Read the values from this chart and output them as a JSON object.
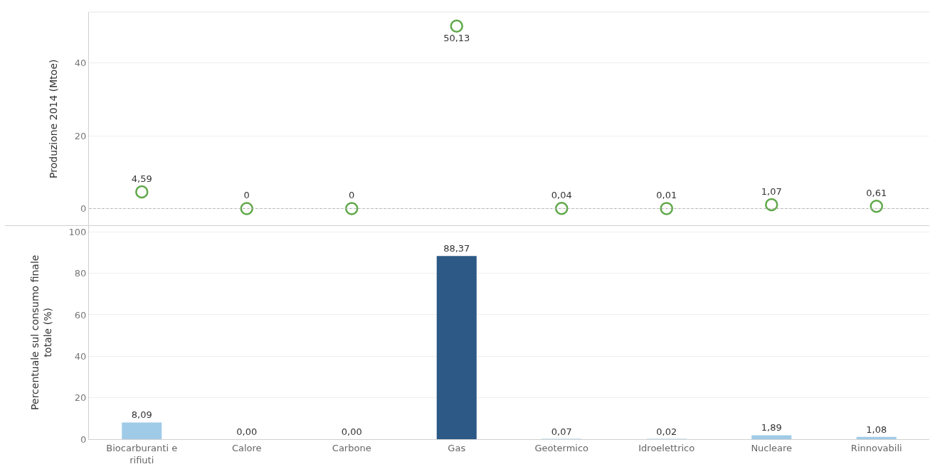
{
  "chart_data": [
    {
      "type": "scatter",
      "ylabel": "Produzione 2014 (Mtoe)",
      "categories": [
        "Biocarburanti e rifiuti",
        "Calore",
        "Carbone",
        "Gas",
        "Geotermico",
        "Idroelettrico",
        "Nucleare",
        "Rinnovabili"
      ],
      "values": [
        4.59,
        0,
        0,
        50.13,
        0.04,
        0.01,
        1.07,
        0.61
      ],
      "value_labels": [
        "4,59",
        "0",
        "0",
        "50,13",
        "0,04",
        "0,01",
        "1,07",
        "0,61"
      ],
      "color": "#5fa84a",
      "marker": "circle",
      "ylim": [
        -4.7,
        54
      ],
      "yticks": [
        0,
        20,
        40
      ],
      "grid": "y",
      "tick_labels": "y",
      "ref_lines": [
        {
          "axis": "y",
          "value": 0,
          "color": "#b0b0b0",
          "line_style": "dotted"
        }
      ]
    },
    {
      "type": "bar",
      "ylabel": "Percentuale sul consumo finale totale (%)",
      "categories": [
        "Biocarburanti e rifiuti",
        "Calore",
        "Carbone",
        "Gas",
        "Geotermico",
        "Idroelettrico",
        "Nucleare",
        "Rinnovabili"
      ],
      "values": [
        8.09,
        0,
        0,
        88.37,
        0.07,
        0.02,
        1.89,
        1.08
      ],
      "value_labels": [
        "8,09",
        "0,00",
        "0,00",
        "88,37",
        "0,07",
        "0,02",
        "1,89",
        "1,08"
      ],
      "colors": [
        "#a0cbe8",
        "#a0cbe8",
        "#a0cbe8",
        "#2c5985",
        "#a0cbe8",
        "#a0cbe8",
        "#a0cbe8",
        "#a0cbe8"
      ],
      "ylim": [
        0,
        103
      ],
      "yticks": [
        0,
        20,
        40,
        60,
        80,
        100
      ],
      "grid": "y"
    }
  ]
}
